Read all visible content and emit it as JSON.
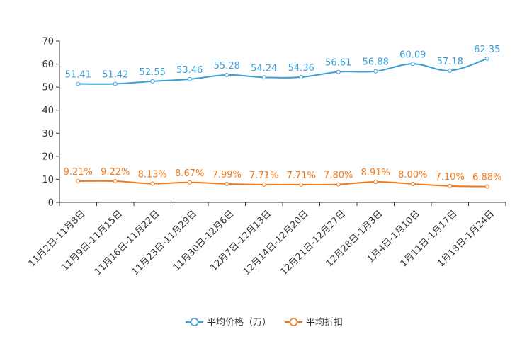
{
  "chart_data": {
    "type": "line",
    "title": "",
    "xlabel": "",
    "ylabel": "",
    "ylim": [
      0,
      70
    ],
    "yticks": [
      0,
      10,
      20,
      30,
      40,
      50,
      60,
      70
    ],
    "grid": false,
    "legend_position": "bottom",
    "categories": [
      "11月2日-11月8日",
      "11月9日-11月15日",
      "11月16日-11月22日",
      "11月23日-11月29日",
      "11月30日-12月6日",
      "12月7日-12月13日",
      "12月14日-12月20日",
      "12月21日-12月27日",
      "12月28日-1月3日",
      "1月4日-1月10日",
      "1月11日-1月17日",
      "1月18日-1月24日"
    ],
    "series": [
      {
        "name": "平均价格（万）",
        "color": "#3a9fd6",
        "values": [
          51.41,
          51.42,
          52.55,
          53.46,
          55.28,
          54.24,
          54.36,
          56.61,
          56.88,
          60.09,
          57.18,
          62.35
        ],
        "labels": [
          "51.41",
          "51.42",
          "52.55",
          "53.46",
          "55.28",
          "54.24",
          "54.36",
          "56.61",
          "56.88",
          "60.09",
          "57.18",
          "62.35"
        ]
      },
      {
        "name": "平均折扣",
        "color": "#f07a1a",
        "values": [
          9.21,
          9.22,
          8.13,
          8.67,
          7.99,
          7.71,
          7.71,
          7.8,
          8.91,
          8.0,
          7.1,
          6.88
        ],
        "labels": [
          "9.21%",
          "9.22%",
          "8.13%",
          "8.67%",
          "7.99%",
          "7.71%",
          "7.71%",
          "7.80%",
          "8.91%",
          "8.00%",
          "7.10%",
          "6.88%"
        ]
      }
    ]
  }
}
